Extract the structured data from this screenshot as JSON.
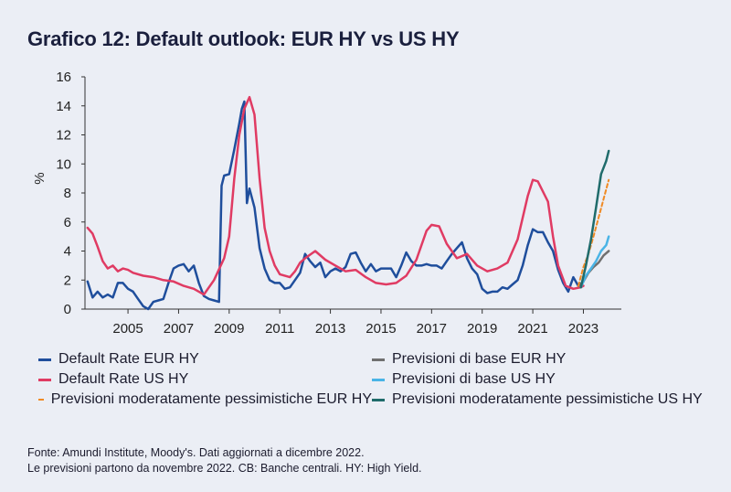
{
  "colors": {
    "eur_default": "#1f4e9c",
    "us_default": "#e03b63",
    "eur_base": "#707070",
    "us_base": "#4ab4e6",
    "eur_pessimistic": "#f08a24",
    "us_pessimistic": "#1f6b6b"
  },
  "chart_data": {
    "type": "line",
    "title": "Grafico 12: Default outlook: EUR HY vs US HY",
    "ylabel": "%",
    "xlabel": "",
    "xlim": [
      2003.3,
      2024.5
    ],
    "ylim": [
      0,
      16
    ],
    "yticks": [
      0,
      2,
      4,
      6,
      8,
      10,
      12,
      14,
      16
    ],
    "xticks": [
      2005,
      2007,
      2009,
      2011,
      2013,
      2015,
      2017,
      2019,
      2021,
      2023
    ],
    "grid": false,
    "legend_position": "bottom",
    "series": [
      {
        "name": "Default Rate EUR HY",
        "color_key": "eur_default",
        "style": "solid",
        "points": [
          [
            2003.4,
            1.9
          ],
          [
            2003.6,
            0.8
          ],
          [
            2003.8,
            1.2
          ],
          [
            2004.0,
            0.8
          ],
          [
            2004.2,
            1.0
          ],
          [
            2004.4,
            0.8
          ],
          [
            2004.6,
            1.8
          ],
          [
            2004.8,
            1.8
          ],
          [
            2005.0,
            1.4
          ],
          [
            2005.2,
            1.2
          ],
          [
            2005.4,
            0.7
          ],
          [
            2005.6,
            0.2
          ],
          [
            2005.8,
            0.0
          ],
          [
            2006.0,
            0.5
          ],
          [
            2006.2,
            0.6
          ],
          [
            2006.4,
            0.7
          ],
          [
            2006.6,
            1.8
          ],
          [
            2006.8,
            2.8
          ],
          [
            2007.0,
            3.0
          ],
          [
            2007.2,
            3.1
          ],
          [
            2007.4,
            2.6
          ],
          [
            2007.6,
            3.0
          ],
          [
            2007.8,
            1.8
          ],
          [
            2008.0,
            0.9
          ],
          [
            2008.2,
            0.7
          ],
          [
            2008.4,
            0.6
          ],
          [
            2008.6,
            0.5
          ],
          [
            2008.7,
            8.5
          ],
          [
            2008.8,
            9.2
          ],
          [
            2009.0,
            9.3
          ],
          [
            2009.2,
            11.0
          ],
          [
            2009.4,
            12.8
          ],
          [
            2009.5,
            13.8
          ],
          [
            2009.6,
            14.3
          ],
          [
            2009.7,
            7.3
          ],
          [
            2009.8,
            8.3
          ],
          [
            2010.0,
            7.0
          ],
          [
            2010.2,
            4.2
          ],
          [
            2010.4,
            2.8
          ],
          [
            2010.6,
            2.0
          ],
          [
            2010.8,
            1.8
          ],
          [
            2011.0,
            1.8
          ],
          [
            2011.2,
            1.4
          ],
          [
            2011.4,
            1.5
          ],
          [
            2011.6,
            2.0
          ],
          [
            2011.8,
            2.5
          ],
          [
            2012.0,
            3.8
          ],
          [
            2012.2,
            3.3
          ],
          [
            2012.4,
            2.9
          ],
          [
            2012.6,
            3.2
          ],
          [
            2012.8,
            2.2
          ],
          [
            2013.0,
            2.6
          ],
          [
            2013.2,
            2.8
          ],
          [
            2013.4,
            2.6
          ],
          [
            2013.6,
            2.9
          ],
          [
            2013.8,
            3.8
          ],
          [
            2014.0,
            3.9
          ],
          [
            2014.2,
            3.2
          ],
          [
            2014.4,
            2.6
          ],
          [
            2014.6,
            3.1
          ],
          [
            2014.8,
            2.6
          ],
          [
            2015.0,
            2.8
          ],
          [
            2015.2,
            2.8
          ],
          [
            2015.4,
            2.8
          ],
          [
            2015.6,
            2.2
          ],
          [
            2015.8,
            3.0
          ],
          [
            2016.0,
            3.9
          ],
          [
            2016.2,
            3.3
          ],
          [
            2016.4,
            3.0
          ],
          [
            2016.6,
            3.0
          ],
          [
            2016.8,
            3.1
          ],
          [
            2017.0,
            3.0
          ],
          [
            2017.2,
            3.0
          ],
          [
            2017.4,
            2.8
          ],
          [
            2017.6,
            3.3
          ],
          [
            2017.8,
            3.8
          ],
          [
            2018.0,
            4.2
          ],
          [
            2018.2,
            4.6
          ],
          [
            2018.4,
            3.5
          ],
          [
            2018.6,
            2.8
          ],
          [
            2018.8,
            2.4
          ],
          [
            2019.0,
            1.4
          ],
          [
            2019.2,
            1.1
          ],
          [
            2019.4,
            1.2
          ],
          [
            2019.6,
            1.2
          ],
          [
            2019.8,
            1.5
          ],
          [
            2020.0,
            1.4
          ],
          [
            2020.2,
            1.7
          ],
          [
            2020.4,
            2.0
          ],
          [
            2020.6,
            3.0
          ],
          [
            2020.8,
            4.4
          ],
          [
            2021.0,
            5.5
          ],
          [
            2021.2,
            5.3
          ],
          [
            2021.4,
            5.3
          ],
          [
            2021.6,
            4.6
          ],
          [
            2021.8,
            4.0
          ],
          [
            2022.0,
            2.7
          ],
          [
            2022.2,
            1.8
          ],
          [
            2022.4,
            1.2
          ],
          [
            2022.6,
            2.2
          ],
          [
            2022.8,
            1.6
          ],
          [
            2023.0,
            1.9
          ]
        ]
      },
      {
        "name": "Default Rate US HY",
        "color_key": "us_default",
        "style": "solid",
        "points": [
          [
            2003.4,
            5.6
          ],
          [
            2003.6,
            5.2
          ],
          [
            2003.8,
            4.3
          ],
          [
            2004.0,
            3.3
          ],
          [
            2004.2,
            2.8
          ],
          [
            2004.4,
            3.0
          ],
          [
            2004.6,
            2.6
          ],
          [
            2004.8,
            2.8
          ],
          [
            2005.0,
            2.7
          ],
          [
            2005.2,
            2.5
          ],
          [
            2005.6,
            2.3
          ],
          [
            2006.0,
            2.2
          ],
          [
            2006.4,
            2.0
          ],
          [
            2006.8,
            1.9
          ],
          [
            2007.2,
            1.6
          ],
          [
            2007.6,
            1.4
          ],
          [
            2008.0,
            1.0
          ],
          [
            2008.4,
            2.0
          ],
          [
            2008.8,
            3.5
          ],
          [
            2009.0,
            5.0
          ],
          [
            2009.2,
            9.0
          ],
          [
            2009.4,
            12.0
          ],
          [
            2009.6,
            13.8
          ],
          [
            2009.8,
            14.6
          ],
          [
            2010.0,
            13.4
          ],
          [
            2010.2,
            9.0
          ],
          [
            2010.4,
            5.6
          ],
          [
            2010.6,
            4.0
          ],
          [
            2010.8,
            3.0
          ],
          [
            2011.0,
            2.4
          ],
          [
            2011.4,
            2.2
          ],
          [
            2011.6,
            2.6
          ],
          [
            2011.8,
            3.2
          ],
          [
            2012.0,
            3.5
          ],
          [
            2012.4,
            4.0
          ],
          [
            2012.8,
            3.4
          ],
          [
            2013.2,
            3.0
          ],
          [
            2013.6,
            2.6
          ],
          [
            2014.0,
            2.7
          ],
          [
            2014.4,
            2.2
          ],
          [
            2014.8,
            1.8
          ],
          [
            2015.2,
            1.7
          ],
          [
            2015.6,
            1.8
          ],
          [
            2016.0,
            2.3
          ],
          [
            2016.4,
            3.4
          ],
          [
            2016.8,
            5.4
          ],
          [
            2017.0,
            5.8
          ],
          [
            2017.3,
            5.7
          ],
          [
            2017.6,
            4.5
          ],
          [
            2018.0,
            3.5
          ],
          [
            2018.4,
            3.8
          ],
          [
            2018.8,
            3.0
          ],
          [
            2019.2,
            2.6
          ],
          [
            2019.6,
            2.8
          ],
          [
            2020.0,
            3.2
          ],
          [
            2020.4,
            4.8
          ],
          [
            2020.8,
            7.8
          ],
          [
            2021.0,
            8.9
          ],
          [
            2021.2,
            8.8
          ],
          [
            2021.6,
            7.4
          ],
          [
            2021.8,
            5.0
          ],
          [
            2022.0,
            3.0
          ],
          [
            2022.3,
            1.6
          ],
          [
            2022.6,
            1.4
          ],
          [
            2022.9,
            1.5
          ],
          [
            2023.0,
            1.6
          ]
        ]
      },
      {
        "name": "Previsioni di base EUR HY",
        "color_key": "eur_base",
        "style": "solid",
        "points": [
          [
            2022.8,
            1.6
          ],
          [
            2023.0,
            1.9
          ],
          [
            2023.2,
            2.5
          ],
          [
            2023.4,
            2.9
          ],
          [
            2023.6,
            3.2
          ],
          [
            2023.8,
            3.7
          ],
          [
            2024.0,
            4.0
          ]
        ]
      },
      {
        "name": "Previsioni di base US HY",
        "color_key": "us_base",
        "style": "solid",
        "points": [
          [
            2022.9,
            1.5
          ],
          [
            2023.1,
            2.3
          ],
          [
            2023.3,
            2.8
          ],
          [
            2023.5,
            3.3
          ],
          [
            2023.7,
            4.0
          ],
          [
            2023.9,
            4.4
          ],
          [
            2024.0,
            5.0
          ]
        ]
      },
      {
        "name": "Previsioni moderatamente pessimistiche EUR HY",
        "color_key": "eur_pessimistic",
        "style": "dashed",
        "points": [
          [
            2022.8,
            1.6
          ],
          [
            2023.0,
            2.9
          ],
          [
            2023.2,
            3.8
          ],
          [
            2023.4,
            5.0
          ],
          [
            2023.6,
            6.3
          ],
          [
            2023.8,
            7.6
          ],
          [
            2024.0,
            8.9
          ]
        ]
      },
      {
        "name": "Previsioni moderatamente pessimistiche US HY",
        "color_key": "us_pessimistic",
        "style": "solid",
        "points": [
          [
            2022.9,
            1.5
          ],
          [
            2023.1,
            3.0
          ],
          [
            2023.3,
            4.8
          ],
          [
            2023.5,
            7.0
          ],
          [
            2023.7,
            9.3
          ],
          [
            2023.9,
            10.2
          ],
          [
            2024.0,
            10.9
          ]
        ]
      }
    ]
  },
  "legend": {
    "items": [
      {
        "label": "Default Rate EUR HY",
        "color_key": "eur_default",
        "style": "solid"
      },
      {
        "label": "Previsioni di base EUR HY",
        "color_key": "eur_base",
        "style": "solid"
      },
      {
        "label": "Default Rate US HY",
        "color_key": "us_default",
        "style": "solid"
      },
      {
        "label": "Previsioni di base US HY",
        "color_key": "us_base",
        "style": "solid"
      },
      {
        "label": "Previsioni moderatamente pessimistiche EUR HY",
        "color_key": "eur_pessimistic",
        "style": "dashed"
      },
      {
        "label": "Previsioni moderatamente pessimistiche US HY",
        "color_key": "us_pessimistic",
        "style": "solid"
      }
    ]
  },
  "source": {
    "line1": "Fonte: Amundi Institute, Moody's. Dati  aggiornati a dicembre 2022.",
    "line2": "Le previsioni partono da novembre 2022. CB: Banche centrali. HY: High Yield."
  }
}
